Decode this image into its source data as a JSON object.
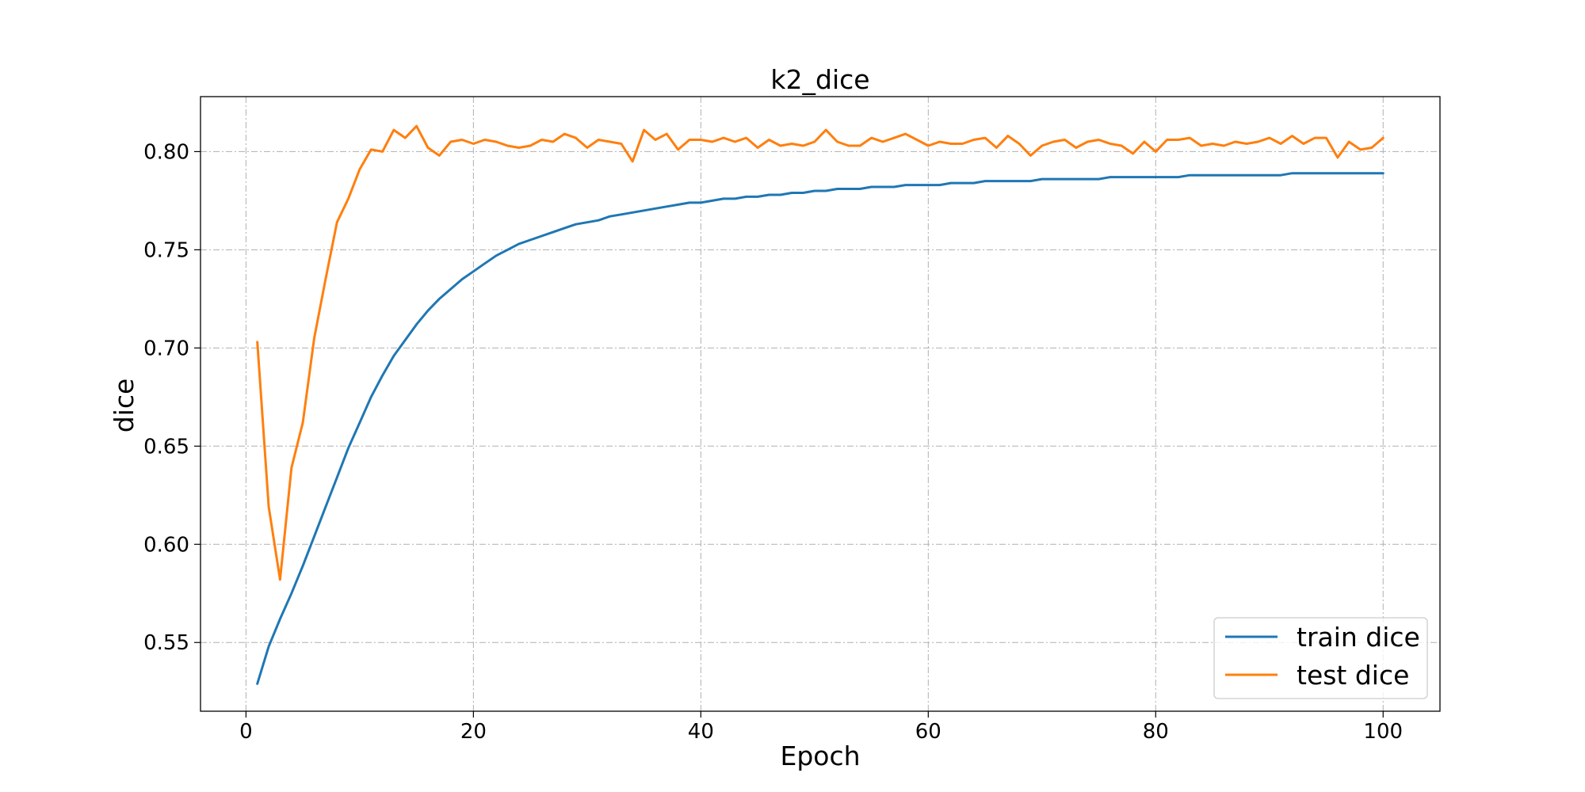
{
  "chart_data": {
    "type": "line",
    "title": "k2_dice",
    "xlabel": "Epoch",
    "ylabel": "dice",
    "xlim": [
      -4,
      105
    ],
    "ylim": [
      0.515,
      0.828
    ],
    "xticks": [
      0,
      20,
      40,
      60,
      80,
      100
    ],
    "yticks": [
      0.55,
      0.6,
      0.65,
      0.7,
      0.75,
      0.8
    ],
    "xtick_labels": [
      "0",
      "20",
      "40",
      "60",
      "80",
      "100"
    ],
    "ytick_labels": [
      "0.55",
      "0.60",
      "0.65",
      "0.70",
      "0.75",
      "0.80"
    ],
    "grid": true,
    "legend_position": "lower-right",
    "x": [
      1,
      2,
      3,
      4,
      5,
      6,
      7,
      8,
      9,
      10,
      11,
      12,
      13,
      14,
      15,
      16,
      17,
      18,
      19,
      20,
      21,
      22,
      23,
      24,
      25,
      26,
      27,
      28,
      29,
      30,
      31,
      32,
      33,
      34,
      35,
      36,
      37,
      38,
      39,
      40,
      41,
      42,
      43,
      44,
      45,
      46,
      47,
      48,
      49,
      50,
      51,
      52,
      53,
      54,
      55,
      56,
      57,
      58,
      59,
      60,
      61,
      62,
      63,
      64,
      65,
      66,
      67,
      68,
      69,
      70,
      71,
      72,
      73,
      74,
      75,
      76,
      77,
      78,
      79,
      80,
      81,
      82,
      83,
      84,
      85,
      86,
      87,
      88,
      89,
      90,
      91,
      92,
      93,
      94,
      95,
      96,
      97,
      98,
      99,
      100
    ],
    "series": [
      {
        "name": "train dice",
        "color": "#1f77b4",
        "values": [
          0.529,
          0.548,
          0.562,
          0.575,
          0.589,
          0.604,
          0.619,
          0.634,
          0.649,
          0.662,
          0.675,
          0.686,
          0.696,
          0.704,
          0.712,
          0.719,
          0.725,
          0.73,
          0.735,
          0.739,
          0.743,
          0.747,
          0.75,
          0.753,
          0.755,
          0.757,
          0.759,
          0.761,
          0.763,
          0.764,
          0.765,
          0.767,
          0.768,
          0.769,
          0.77,
          0.771,
          0.772,
          0.773,
          0.774,
          0.774,
          0.775,
          0.776,
          0.776,
          0.777,
          0.777,
          0.778,
          0.778,
          0.779,
          0.779,
          0.78,
          0.78,
          0.781,
          0.781,
          0.781,
          0.782,
          0.782,
          0.782,
          0.783,
          0.783,
          0.783,
          0.783,
          0.784,
          0.784,
          0.784,
          0.785,
          0.785,
          0.785,
          0.785,
          0.785,
          0.786,
          0.786,
          0.786,
          0.786,
          0.786,
          0.786,
          0.787,
          0.787,
          0.787,
          0.787,
          0.787,
          0.787,
          0.787,
          0.788,
          0.788,
          0.788,
          0.788,
          0.788,
          0.788,
          0.788,
          0.788,
          0.788,
          0.789,
          0.789,
          0.789,
          0.789,
          0.789,
          0.789,
          0.789,
          0.789,
          0.789
        ]
      },
      {
        "name": "test dice",
        "color": "#ff7f0e",
        "values": [
          0.703,
          0.619,
          0.582,
          0.639,
          0.662,
          0.705,
          0.735,
          0.764,
          0.776,
          0.791,
          0.801,
          0.8,
          0.811,
          0.807,
          0.813,
          0.802,
          0.798,
          0.805,
          0.806,
          0.804,
          0.806,
          0.805,
          0.803,
          0.802,
          0.803,
          0.806,
          0.805,
          0.809,
          0.807,
          0.802,
          0.806,
          0.805,
          0.804,
          0.795,
          0.811,
          0.806,
          0.809,
          0.801,
          0.806,
          0.806,
          0.805,
          0.807,
          0.805,
          0.807,
          0.802,
          0.806,
          0.803,
          0.804,
          0.803,
          0.805,
          0.811,
          0.805,
          0.803,
          0.803,
          0.807,
          0.805,
          0.807,
          0.809,
          0.806,
          0.803,
          0.805,
          0.804,
          0.804,
          0.806,
          0.807,
          0.802,
          0.808,
          0.804,
          0.798,
          0.803,
          0.805,
          0.806,
          0.802,
          0.805,
          0.806,
          0.804,
          0.803,
          0.799,
          0.805,
          0.8,
          0.806,
          0.806,
          0.807,
          0.803,
          0.804,
          0.803,
          0.805,
          0.804,
          0.805,
          0.807,
          0.804,
          0.808,
          0.804,
          0.807,
          0.807,
          0.797,
          0.805,
          0.801,
          0.802,
          0.807
        ]
      }
    ]
  }
}
